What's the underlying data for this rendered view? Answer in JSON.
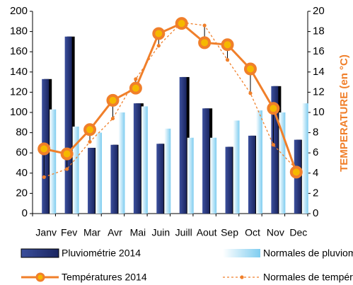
{
  "chart_data": {
    "type": "bar_line",
    "y2_label": "TEMPERATURE (en °C)",
    "categories": [
      "Janv",
      "Fev",
      "Mar",
      "Avr",
      "Mai",
      "Juin",
      "Juill",
      "Aout",
      "Sep",
      "Oct",
      "Nov",
      "Dec"
    ],
    "series": [
      {
        "name": "Pluviométrie 2014",
        "type": "bar",
        "color": "#1f2d6e",
        "values": [
          133,
          175,
          65,
          68,
          109,
          69,
          135,
          104,
          66,
          77,
          126,
          73
        ]
      },
      {
        "name": "Normales de pluviométrie",
        "type": "bar",
        "color": "#8fd3f2",
        "values": [
          103,
          86,
          80,
          100,
          106,
          84,
          75,
          75,
          92,
          102,
          100,
          109
        ]
      },
      {
        "name": "Températures 2014",
        "type": "line",
        "axis": "y2",
        "color": "#f07f2a",
        "values": [
          6.4,
          5.9,
          8.3,
          11.2,
          12.4,
          17.8,
          18.8,
          16.9,
          16.7,
          14.3,
          10.4,
          4.1
        ]
      },
      {
        "name": "Normales de température",
        "type": "dotted-line",
        "axis": "y2",
        "color": "#f07f2a",
        "values": [
          3.6,
          4.4,
          7.1,
          9.4,
          13.3,
          16.6,
          18.9,
          18.6,
          15.2,
          11.9,
          6.8,
          4.4
        ]
      }
    ],
    "ylim": [
      0,
      200
    ],
    "yticks": [
      0,
      20,
      40,
      60,
      80,
      100,
      120,
      140,
      160,
      180,
      200
    ],
    "y2lim": [
      0,
      20
    ],
    "y2ticks": [
      0,
      2,
      4,
      6,
      8,
      10,
      12,
      14,
      16,
      18,
      20
    ]
  }
}
